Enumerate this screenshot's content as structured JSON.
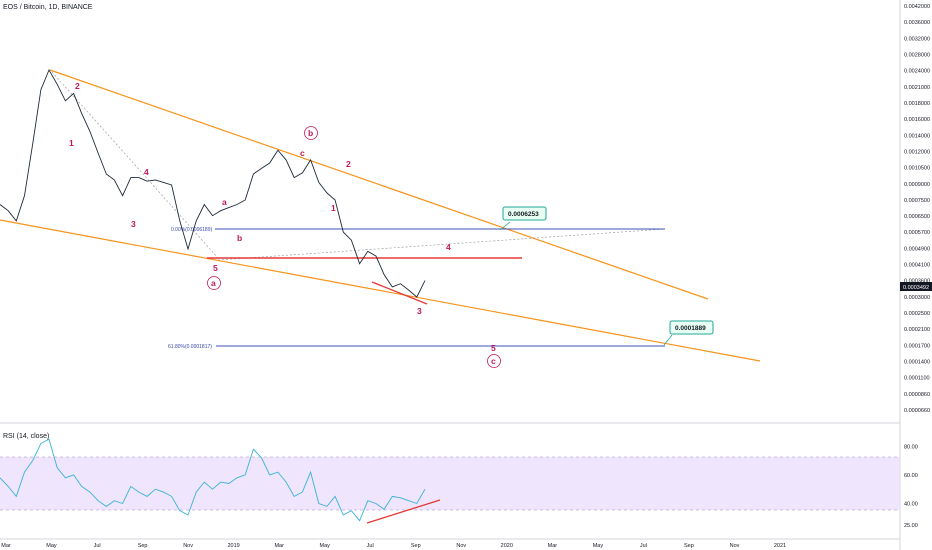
{
  "chart_data": {
    "type": "line",
    "title": "EOS / Bitcoin, 1D, BINANCE",
    "price_axis": {
      "ticks": [
        "0.0042000",
        "0.0036000",
        "0.0032000",
        "0.0028000",
        "0.0024000",
        "0.0021000",
        "0.0018000",
        "0.0016000",
        "0.0014000",
        "0.0012000",
        "0.0010500",
        "0.0009000",
        "0.0007500",
        "0.0006500",
        "0.0005700",
        "0.0004900",
        "0.0004100",
        "0.0003600",
        "0.0003000",
        "0.0002500",
        "0.0002100",
        "0.0001700",
        "0.0001400",
        "0.0001100",
        "0.0000860",
        "0.0000660"
      ],
      "last_price_label": "0.0003492",
      "log": true
    },
    "time_axis": [
      "Mar",
      "May",
      "Jul",
      "Sep",
      "Nov",
      "2019",
      "Mar",
      "May",
      "Jul",
      "Sep",
      "Nov",
      "2020",
      "Mar",
      "May",
      "Jul",
      "Sep",
      "Nov",
      "2021"
    ],
    "series": [
      {
        "values": [
          0.00072,
          0.00068,
          0.00062,
          0.00078,
          0.00125,
          0.00205,
          0.00245,
          0.00215,
          0.00185,
          0.00198,
          0.00165,
          0.0014,
          0.00115,
          0.00095,
          0.0009,
          0.00078,
          0.00092,
          0.00092,
          0.00089,
          0.0009,
          0.00088,
          0.00086,
          0.00062,
          0.00048,
          0.00062,
          0.00072,
          0.00065,
          0.00068,
          0.0007,
          0.00072,
          0.00075,
          0.00095,
          0.001,
          0.00105,
          0.00118,
          0.00108,
          0.00092,
          0.00096,
          0.00108,
          0.00088,
          0.0008,
          0.00075,
          0.00056,
          0.00052,
          0.00042,
          0.00047,
          0.00045,
          0.00038,
          0.00034,
          0.00035,
          0.00033,
          0.00031,
          0.00036
        ]
      }
    ],
    "wave_labels": [
      "1",
      "2",
      "3",
      "4",
      "5",
      "a",
      "b",
      "c",
      "1",
      "2",
      "3",
      "4",
      "5",
      "a",
      "b",
      "c"
    ],
    "fib_labels": [
      "0.00%(0.0006189)",
      "61.80%(0.0001817)"
    ],
    "callouts": [
      "0.0006253",
      "0.0001889"
    ],
    "rsi": {
      "label": "RSI (14, close)",
      "ticks": [
        "80.00",
        "60.00",
        "40.00",
        "25.00"
      ],
      "band": [
        30,
        70
      ],
      "values": [
        58,
        52,
        45,
        62,
        70,
        82,
        85,
        65,
        58,
        60,
        52,
        48,
        42,
        38,
        42,
        40,
        52,
        48,
        45,
        50,
        48,
        45,
        35,
        32,
        48,
        55,
        50,
        55,
        54,
        58,
        60,
        78,
        72,
        60,
        62,
        55,
        45,
        48,
        62,
        40,
        38,
        45,
        32,
        35,
        28,
        42,
        40,
        36,
        45,
        44,
        42,
        40,
        50
      ]
    },
    "colors": {
      "price": "#1e2a3a",
      "rsi": "#3bb3d6",
      "trend": "#f7931a",
      "fib": "#3f51b5",
      "red": "#e53935",
      "wave": "#c2185b",
      "band": "#ece0fb",
      "callout": "#26a69a"
    }
  }
}
